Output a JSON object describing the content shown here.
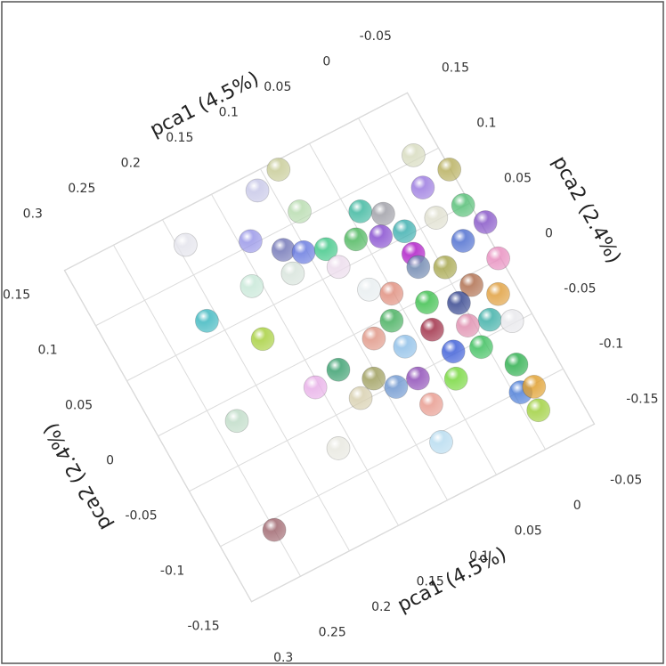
{
  "chart_data": {
    "type": "scatter3d",
    "xlabel": "pca1 (4.5%)",
    "ylabel": "pca2 (2.4%)",
    "xlim": [
      -0.05,
      0.3
    ],
    "ylim": [
      -0.15,
      0.15
    ],
    "xticks": [
      -0.05,
      0,
      0.05,
      0.1,
      0.15,
      0.2,
      0.25,
      0.3
    ],
    "yticks": [
      -0.15,
      -0.1,
      -0.05,
      0,
      0.05,
      0.1,
      0.15
    ],
    "grid": true,
    "x": [
      0.086,
      0.112,
      0.088,
      0.193,
      0.14,
      0.118,
      0.103,
      0.084,
      0.082,
      0.121,
      0.159,
      0.21,
      0.174,
      0.128,
      0.154,
      0.231,
      0.163,
      0.25,
      0.079,
      0.07,
      0.039,
      -0.027,
      -0.02,
      -0.049,
      0.04,
      0.023,
      0.017,
      0.035,
      0.056,
      0.068,
      0.052,
      0.019,
      -0.002,
      -0.015,
      0.003,
      -0.014,
      0.036,
      0.086,
      0.065,
      0.029,
      0.005,
      -0.015,
      -0.006,
      -0.012,
      -0.019,
      0.09,
      0.069,
      0.123,
      0.104,
      -0.048,
      -0.054,
      -0.044,
      -0.017,
      0.014,
      -0.032,
      -0.031,
      0.064,
      -0.028,
      0.028,
      0.006
    ],
    "values": [
      0.143,
      0.136,
      0.106,
      0.124,
      0.103,
      0.085,
      0.076,
      0.07,
      0.053,
      0.065,
      0.071,
      0.063,
      0.03,
      -0.019,
      -0.023,
      -0.018,
      -0.074,
      -0.108,
      -0.107,
      -0.077,
      -0.068,
      0.104,
      0.078,
      0.081,
      0.084,
      0.074,
      0.035,
      0.059,
      0.066,
      0.026,
      0.015,
      0.024,
      0.014,
      -0.008,
      -0.016,
      -0.039,
      -0.025,
      -0.01,
      -0.027,
      -0.048,
      -0.055,
      -0.08,
      -0.101,
      -0.12,
      -0.102,
      -0.052,
      -0.054,
      -0.047,
      -0.038,
      0.001,
      0.031,
      0.051,
      0.052,
      0.054,
      -0.024,
      -0.048,
      -0.004,
      0.026,
      -0.004,
      -0.035
    ],
    "colors": [
      "#c8cc98",
      "#c8c8e8",
      "#b8dcb0",
      "#e4e4ec",
      "#9a98e8",
      "#7478b8",
      "#6a7ce0",
      "#44c88a",
      "#ecdcec",
      "#d8e4dc",
      "#c8e8d8",
      "#40b8c0",
      "#a8d040",
      "#3ca070",
      "#e8b0e8",
      "#c0dcc8",
      "#e8e8e0",
      "#a06870",
      "#b8dcf0",
      "#e89c90",
      "#78d840",
      "#d8dcc0",
      "#9c7ce0",
      "#b8b060",
      "#40b8a0",
      "#a0a0a8",
      "#b020c8",
      "#8850d0",
      "#50b860",
      "#e8eef0",
      "#e09080",
      "#7088b0",
      "#a8a850",
      "#b07050",
      "#384890",
      "#40b0a8",
      "#a03048",
      "#e09888",
      "#90c0e8",
      "#4060d8",
      "#40c060",
      "#30b050",
      "#5080d8",
      "#a0d040",
      "#e0a030",
      "#7098d0",
      "#9050b8",
      "#d8d0b0",
      "#a0a060",
      "#e890c0",
      "#8858c8",
      "#58c078",
      "#e0e0d0",
      "#40b0b0",
      "#e0a040",
      "#e8e8ec",
      "#48b060",
      "#5070d0",
      "#40c050",
      "#e090b0"
    ]
  }
}
